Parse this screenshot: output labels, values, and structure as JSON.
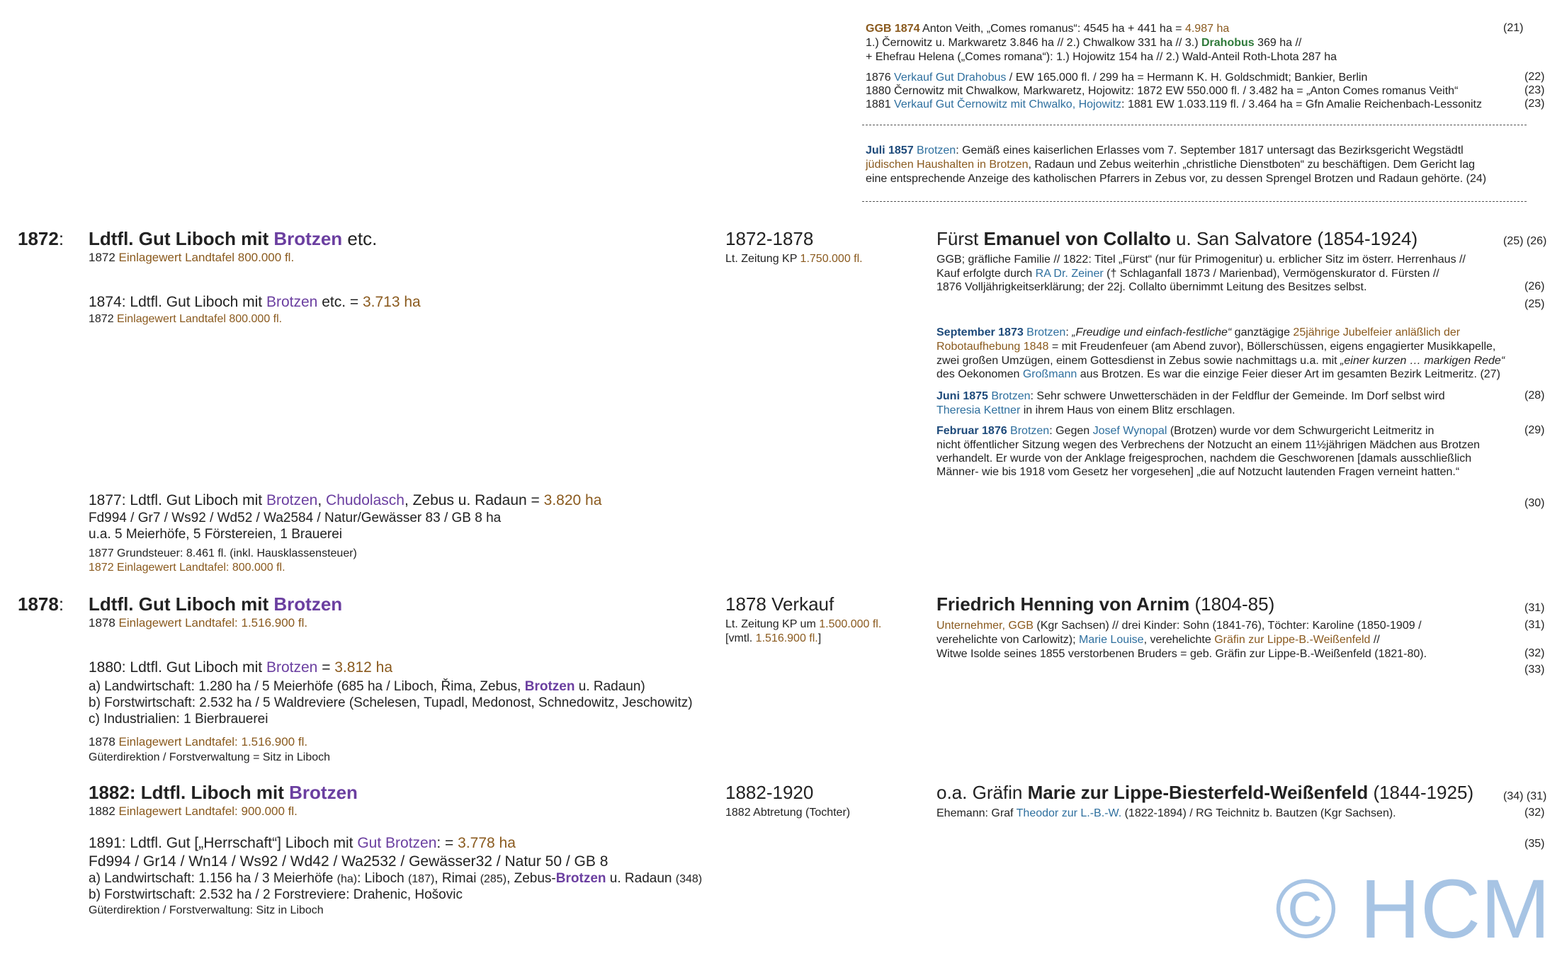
{
  "top_block": {
    "ggb1874": {
      "label": "GGB 1874",
      "text1": " Anton Veith, „Comes romanus“: 4545 ha + 441 ha = ",
      "value": "4.987 ha",
      "ref": "(21)",
      "line2a": "1.) Černowitz u. Markwaretz 3.846 ha // 2.) Chwalkow 331 ha // 3.) ",
      "line2b": "Drahobus",
      "line2c": " 369 ha //",
      "line3": "+ Ehefrau Helena („Comes romana“): 1.) Hojowitz 154 ha // 2.) Wald-Anteil Roth-Lhota 287 ha"
    },
    "sales": [
      {
        "year": "1876 ",
        "link": "Verkauf Gut Drahobus",
        "text": " / EW 165.000 fl. / 299 ha = Hermann K. H. Goldschmidt; Bankier, Berlin",
        "ref": "(22)"
      },
      {
        "year": "1880 Černowitz mit Chwalkow, Markwaretz, Hojowitz: 1872 EW  550.000 fl. / 3.482 ha = „Anton Comes romanus Veith“",
        "link": "",
        "text": "",
        "ref": "(23)"
      },
      {
        "year": "1881 ",
        "link": "Verkauf Gut Černowitz mit Chwalko, Hojowitz",
        "text": ": 1881 EW 1.033.119 fl. / 3.464 ha = Gfn Amalie Reichenbach-Lessonitz",
        "ref": "(23)"
      }
    ],
    "july1857": {
      "date": "Juli 1857",
      "place": " Brotzen",
      "line1": ": Gemäß eines kaiserlichen Erlasses vom 7. September 1817 untersagt das Bezirksgericht Wegstädtl",
      "line2a": "jüdischen Haushalten in Brotzen",
      "line2b": ", Radaun und Zebus weiterhin „christliche Dienstboten“ zu beschäftigen. Dem Gericht lag",
      "line3": "eine entsprechende Anzeige des katholischen Pfarrers in Zebus vor, zu dessen Sprengel Brotzen und Radaun gehörte. (24)"
    }
  },
  "section1872": {
    "year": "1872",
    "colon": ":",
    "title_a": "Ldtfl. Gut Liboch mit ",
    "title_b": "Brotzen",
    "title_c": " etc.",
    "sub_a": "1872 ",
    "sub_b": "Einlagewert Landtafel 800.000 fl.",
    "period": "1872-1878",
    "period_sub_a": "Lt. Zeitung KP ",
    "period_sub_b": "1.750.000 fl.",
    "owner_a": "Fürst ",
    "owner_b": "Emanuel von Collalto",
    "owner_c": " u. San Salvatore (1854-1924)",
    "owner_ref": "(25) (26)",
    "owner_l1": "GGB; gräfliche Familie // 1822: Titel „Fürst“ (nur für Primogenitur) u. erblicher Sitz im österr. Herrenhaus //",
    "owner_l2a": "Kauf erfolgte durch ",
    "owner_l2b": "RA Dr. Zeiner",
    "owner_l2c": " († Schlaganfall 1873 / Marienbad), Vermögenskurator d. Fürsten //",
    "owner_l3": "1876 Volljährigkeitserklärung; der 22j. Collalto übernimmt Leitung des Besitzes selbst.",
    "ref26": "(26)",
    "ref25": "(25)",
    "y1874_a": "1874: Ldtfl. Gut Liboch mit ",
    "y1874_b": "Brotzen",
    "y1874_c": " etc. = ",
    "y1874_d": "3.713 ha",
    "y1874_sub_a": "1872 ",
    "y1874_sub_b": "Einlagewert Landtafel 800.000 fl."
  },
  "events": {
    "sep1873": {
      "date": "September 1873",
      "place": " Brotzen",
      "l1a": ": ",
      "l1b": "„Freudige und einfach-festliche“",
      "l1c": " ganztägige ",
      "l1d": "25jährige Jubelfeier anläßlich der",
      "l2a": "Robotaufhebung 1848",
      "l2b": " = mit Freudenfeuer (am Abend zuvor), Böllerschüssen, eigens engagierter Musikkapelle,",
      "l3a": "zwei großen Umzügen, einem Gottesdienst in Zebus sowie nachmittags u.a. mit ",
      "l3b": "„einer kurzen … markigen Rede“",
      "l4a": "des Oekonomen ",
      "l4b": "Großmann",
      "l4c": " aus Brotzen. Es war die einzige Feier dieser Art im gesamten Bezirk Leitmeritz. (27)"
    },
    "jun1875": {
      "date": "Juni 1875",
      "place": " Brotzen",
      "l1": ": Sehr schwere Unwetterschäden in der Feldflur der Gemeinde. Im Dorf selbst wird",
      "l2a": "Theresia Kettner",
      "l2b": " in ihrem Haus von einem Blitz erschlagen.",
      "ref": "(28)"
    },
    "feb1876": {
      "date": "Februar 1876",
      "place": " Brotzen",
      "l1a": ": Gegen ",
      "l1b": "Josef Wynopal",
      "l1c": " (Brotzen) wurde vor dem Schwurgericht Leitmeritz in",
      "l2": "nicht öffentlicher Sitzung wegen des Verbrechens der Notzucht an einem 11½jährigen Mädchen aus Brotzen",
      "l3": "verhandelt. Er wurde von der Anklage freigesprochen, nachdem die Geschworenen [damals ausschließlich",
      "l4": "Männer- wie bis 1918 vom Gesetz her vorgesehen] „die auf Notzucht lautenden Fragen verneint hatten.“",
      "ref": "(29)"
    }
  },
  "y1877": {
    "t_a": "1877: Ldtfl. Gut Liboch mit ",
    "t_b": "Brotzen",
    "t_c": ", ",
    "t_d": "Chudolasch",
    "t_e": ", Zebus u. Radaun = ",
    "t_f": "3.820 ha",
    "l2": "Fd994 / Gr7 / Ws92 / Wd52 / Wa2584 / Natur/Gewässer 83 / GB 8 ha",
    "l3": "u.a. 5 Meierhöfe, 5 Förstereien, 1 Brauerei",
    "l4": "1877 Grundsteuer: 8.461 fl. (inkl. Hausklassensteuer)",
    "l5": "1872 Einlagewert Landtafel: 800.000 fl.",
    "ref": "(30)"
  },
  "section1878": {
    "year": "1878",
    "colon": ":",
    "title_a": "Ldtfl. Gut Liboch mit ",
    "title_b": "Brotzen",
    "sub_a": "1878 ",
    "sub_b": "Einlagewert Landtafel: 1.516.900 fl.",
    "period": "1878 Verkauf",
    "period_sub1a": "Lt. Zeitung KP um ",
    "period_sub1b": "1.500.000 fl.",
    "period_sub2a": "[vmtl. ",
    "period_sub2b": "1.516.900 fl.",
    "period_sub2c": "]",
    "owner_a": "Friedrich Henning von Arnim",
    "owner_b": " (1804-85)",
    "owner_ref": "(31)",
    "o_l1a": "Unternehmer, GGB",
    "o_l1b": " (Kgr Sachsen) // drei Kinder: Sohn (1841-76), Töchter: Karoline (1850-1909 /",
    "o_ref1": "(31)",
    "o_l2a": "verehelichte von Carlowitz); ",
    "o_l2b": "Marie Louise",
    "o_l2c": ", verehelichte ",
    "o_l2d": "Gräfin zur Lippe-B.-Weißenfeld",
    "o_l2e": " //",
    "o_l3": "Witwe Isolde seines 1855 verstorbenen Bruders = geb. Gräfin zur Lippe-B.-Weißenfeld (1821-80).",
    "o_ref3": "(32)",
    "o_ref4": "(33)",
    "y1880_a": "1880: Ldtfl. Gut Liboch mit ",
    "y1880_b": "Brotzen",
    "y1880_c": " = ",
    "y1880_d": "3.812 ha",
    "la_a": "a) Landwirtschaft: 1.280 ha / 5 Meierhöfe (685 ha / Liboch, Řima, Zebus, ",
    "la_b": "Brotzen",
    "la_c": " u. Radaun)",
    "lb": "b) Forstwirtschaft: 2.532 ha / 5 Waldreviere (Schelesen, Tupadl, Medonost, Schnedowitz, Jeschowitz)",
    "lc": "c) Industrialien: 1 Bierbrauerei",
    "ld_a": "1878 ",
    "ld_b": "Einlagewert Landtafel: 1.516.900 fl.",
    "le": "Güterdirektion / Forstverwaltung = Sitz in Liboch"
  },
  "section1882": {
    "title_a": "1882: Ldtfl. Liboch mit ",
    "title_b": "Brotzen",
    "sub_a": "1882 ",
    "sub_b": "Einlagewert Landtafel: 900.000 fl.",
    "period": "1882-1920",
    "period_sub": "1882 Abtretung (Tochter)",
    "owner_a": "o.a. Gräfin ",
    "owner_b": "Marie zur Lippe-Biesterfeld-Weißenfeld",
    "owner_c": " (1844-1925)",
    "owner_ref": "(34) (31)",
    "o_l1a": "Ehemann: Graf ",
    "o_l1b": "Theodor zur L.-B.-W.",
    "o_l1c": " (1822-1894) / RG Teichnitz b. Bautzen (Kgr Sachsen).",
    "o_ref1": "(32)",
    "y1891_a": "1891: Ldtfl. Gut [„Herrschaft“] Liboch mit ",
    "y1891_b": "Gut Brotzen",
    "y1891_c": ": = ",
    "y1891_d": "3.778 ha",
    "ref35": "(35)",
    "l2": "Fd994 / Gr14 / Wn14 / Ws92 / Wd42 / Wa2532 / Gewässer32 / Natur 50 / GB 8",
    "la_a": "a) Landwirtschaft: 1.156 ha / 3 Meierhöfe ",
    "la_b": "(ha)",
    "la_c": ": Liboch ",
    "la_d": "(187)",
    "la_e": ", Rimai ",
    "la_f": "(285)",
    "la_g": ", Zebus-",
    "la_h": "Brotzen",
    "la_i": " u. Radaun ",
    "la_j": "(348)",
    "lb": "b) Forstwirtschaft: 2.532 ha / 2 Forstreviere: Drahenic, Hošovic",
    "lc": "Güterdirektion / Forstverwaltung: Sitz in Liboch"
  },
  "watermark": "© HCM",
  "colors": {
    "brown": "#8a5a1e",
    "blue": "#2e6f9e",
    "purple": "#6b3fa0",
    "green": "#2f7a3a",
    "navy": "#1e4a7a",
    "watermark": "#a7c4e4"
  }
}
